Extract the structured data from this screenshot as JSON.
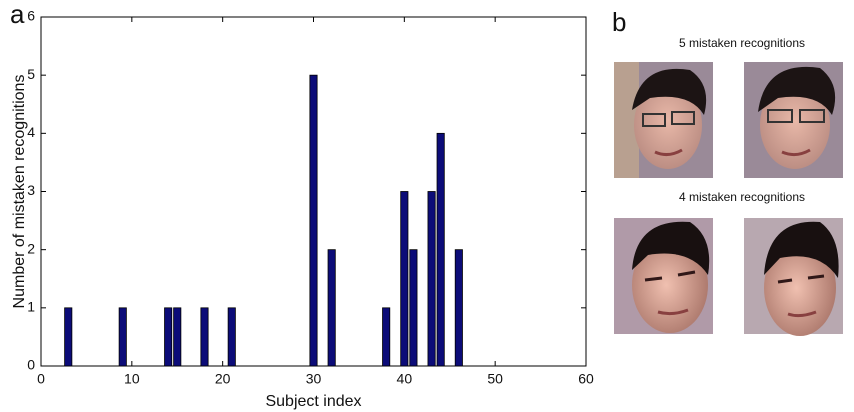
{
  "panel_labels": [
    "a",
    "b"
  ],
  "chart_data": {
    "type": "bar",
    "xlabel": "Subject index",
    "ylabel": "Number of mistaken recognitions",
    "x": [
      3,
      9,
      14,
      15,
      18,
      21,
      30,
      32,
      38,
      40,
      41,
      43,
      44,
      46
    ],
    "values": [
      1,
      1,
      1,
      1,
      1,
      1,
      5,
      2,
      1,
      3,
      2,
      3,
      4,
      2
    ],
    "color": "#0c0c78",
    "xlim": [
      0,
      60
    ],
    "xticks": [
      0,
      10,
      20,
      30,
      40,
      50,
      60
    ],
    "ylim": [
      0,
      6
    ],
    "yticks": [
      0,
      1,
      2,
      3,
      4,
      5,
      6
    ]
  },
  "panel_b": {
    "captions": [
      "5 mistaken recognitions",
      "4 mistaken recognitions"
    ]
  }
}
